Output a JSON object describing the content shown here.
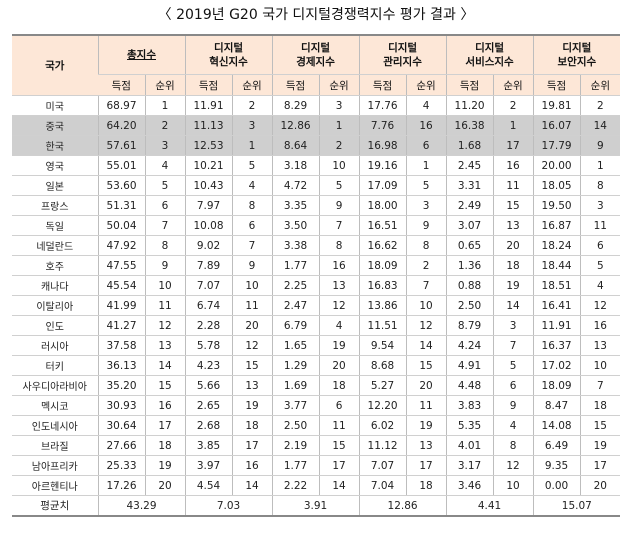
{
  "title": "〈 2019년 G20 국가 디지털경쟁력지수 평가 결과 〉",
  "header": {
    "country": "국가",
    "groups": [
      "총지수",
      "디지털\n혁신지수",
      "디지털\n경제지수",
      "디지털\n관리지수",
      "디지털\n서비스지수",
      "디지털\n보안지수"
    ],
    "score": "득점",
    "rank": "순위"
  },
  "highlight_color": "#cfcfcf",
  "header_color": "#fde7d7",
  "rows": [
    {
      "country": "미국",
      "cells": [
        "68.97",
        "1",
        "11.91",
        "2",
        "8.29",
        "3",
        "17.76",
        "4",
        "11.20",
        "2",
        "19.81",
        "2"
      ],
      "highlight": false
    },
    {
      "country": "중국",
      "cells": [
        "64.20",
        "2",
        "11.13",
        "3",
        "12.86",
        "1",
        "7.76",
        "16",
        "16.38",
        "1",
        "16.07",
        "14"
      ],
      "highlight": true
    },
    {
      "country": "한국",
      "cells": [
        "57.61",
        "3",
        "12.53",
        "1",
        "8.64",
        "2",
        "16.98",
        "6",
        "1.68",
        "17",
        "17.79",
        "9"
      ],
      "highlight": true
    },
    {
      "country": "영국",
      "cells": [
        "55.01",
        "4",
        "10.21",
        "5",
        "3.18",
        "10",
        "19.16",
        "1",
        "2.45",
        "16",
        "20.00",
        "1"
      ],
      "highlight": false
    },
    {
      "country": "일본",
      "cells": [
        "53.60",
        "5",
        "10.43",
        "4",
        "4.72",
        "5",
        "17.09",
        "5",
        "3.31",
        "11",
        "18.05",
        "8"
      ],
      "highlight": false
    },
    {
      "country": "프랑스",
      "cells": [
        "51.31",
        "6",
        "7.97",
        "8",
        "3.35",
        "9",
        "18.00",
        "3",
        "2.49",
        "15",
        "19.50",
        "3"
      ],
      "highlight": false
    },
    {
      "country": "독일",
      "cells": [
        "50.04",
        "7",
        "10.08",
        "6",
        "3.50",
        "7",
        "16.51",
        "9",
        "3.07",
        "13",
        "16.87",
        "11"
      ],
      "highlight": false
    },
    {
      "country": "네덜란드",
      "cells": [
        "47.92",
        "8",
        "9.02",
        "7",
        "3.38",
        "8",
        "16.62",
        "8",
        "0.65",
        "20",
        "18.24",
        "6"
      ],
      "highlight": false
    },
    {
      "country": "호주",
      "cells": [
        "47.55",
        "9",
        "7.89",
        "9",
        "1.77",
        "16",
        "18.09",
        "2",
        "1.36",
        "18",
        "18.44",
        "5"
      ],
      "highlight": false
    },
    {
      "country": "캐나다",
      "cells": [
        "45.54",
        "10",
        "7.07",
        "10",
        "2.25",
        "13",
        "16.83",
        "7",
        "0.88",
        "19",
        "18.51",
        "4"
      ],
      "highlight": false
    },
    {
      "country": "이탈리아",
      "cells": [
        "41.99",
        "11",
        "6.74",
        "11",
        "2.47",
        "12",
        "13.86",
        "10",
        "2.50",
        "14",
        "16.41",
        "12"
      ],
      "highlight": false
    },
    {
      "country": "인도",
      "cells": [
        "41.27",
        "12",
        "2.28",
        "20",
        "6.79",
        "4",
        "11.51",
        "12",
        "8.79",
        "3",
        "11.91",
        "16"
      ],
      "highlight": false
    },
    {
      "country": "러시아",
      "cells": [
        "37.58",
        "13",
        "5.78",
        "12",
        "1.65",
        "19",
        "9.54",
        "14",
        "4.24",
        "7",
        "16.37",
        "13"
      ],
      "highlight": false
    },
    {
      "country": "터키",
      "cells": [
        "36.13",
        "14",
        "4.23",
        "15",
        "1.29",
        "20",
        "8.68",
        "15",
        "4.91",
        "5",
        "17.02",
        "10"
      ],
      "highlight": false
    },
    {
      "country": "사우디아라비아",
      "cells": [
        "35.20",
        "15",
        "5.66",
        "13",
        "1.69",
        "18",
        "5.27",
        "20",
        "4.48",
        "6",
        "18.09",
        "7"
      ],
      "highlight": false
    },
    {
      "country": "멕시코",
      "cells": [
        "30.93",
        "16",
        "2.65",
        "19",
        "3.77",
        "6",
        "12.20",
        "11",
        "3.83",
        "9",
        "8.47",
        "18"
      ],
      "highlight": false
    },
    {
      "country": "인도네시아",
      "cells": [
        "30.64",
        "17",
        "2.68",
        "18",
        "2.50",
        "11",
        "6.02",
        "19",
        "5.35",
        "4",
        "14.08",
        "15"
      ],
      "highlight": false
    },
    {
      "country": "브라질",
      "cells": [
        "27.66",
        "18",
        "3.85",
        "17",
        "2.19",
        "15",
        "11.12",
        "13",
        "4.01",
        "8",
        "6.49",
        "19"
      ],
      "highlight": false
    },
    {
      "country": "남아프리카",
      "cells": [
        "25.33",
        "19",
        "3.97",
        "16",
        "1.77",
        "17",
        "7.07",
        "17",
        "3.17",
        "12",
        "9.35",
        "17"
      ],
      "highlight": false
    },
    {
      "country": "아르헨티나",
      "cells": [
        "17.26",
        "20",
        "4.54",
        "14",
        "2.22",
        "14",
        "7.04",
        "18",
        "3.46",
        "10",
        "0.00",
        "20"
      ],
      "highlight": false
    }
  ],
  "average": {
    "label": "평균치",
    "values": [
      "43.29",
      "7.03",
      "3.91",
      "12.86",
      "4.41",
      "15.07"
    ]
  }
}
